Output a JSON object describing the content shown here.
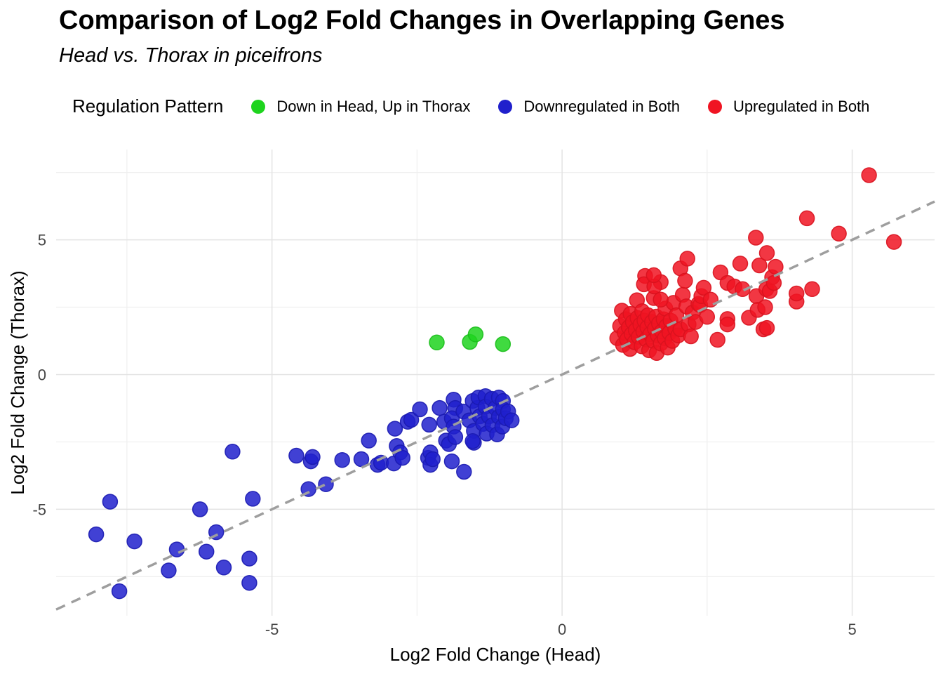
{
  "header": {
    "title": "Comparison of Log2 Fold Changes in Overlapping Genes",
    "subtitle": "Head vs. Thorax in piceifrons"
  },
  "legend": {
    "title": "Regulation Pattern",
    "items": [
      {
        "label": "Down in Head, Up in Thorax",
        "color": "#1ED41E",
        "stroke": "#19BE19"
      },
      {
        "label": "Downregulated in Both",
        "color": "#2020CC",
        "stroke": "#1A1AB0"
      },
      {
        "label": "Upregulated in Both",
        "color": "#F01422",
        "stroke": "#D8121E"
      }
    ]
  },
  "chart_data": {
    "type": "scatter",
    "title": "Comparison of Log2 Fold Changes in Overlapping Genes",
    "subtitle": "Head vs. Thorax in piceifrons",
    "xlabel": "Log2 Fold Change (Head)",
    "ylabel": "Log2 Fold Change (Thorax)",
    "xlim": [
      -8.72,
      6.42
    ],
    "ylim": [
      -8.95,
      8.35
    ],
    "x_ticks": [
      -5,
      0,
      5
    ],
    "y_ticks": [
      -5,
      0,
      5
    ],
    "x_minor_ticks": [
      -7.5,
      -2.5,
      2.5
    ],
    "y_minor_ticks": [
      -7.5,
      -2.5,
      2.5,
      7.5
    ],
    "grid": true,
    "legend_position": "top",
    "colors": {
      "grid_major": "#E3E3E3",
      "grid_minor": "#EFEFEF",
      "axis_text": "#474747",
      "axis_title": "#000000",
      "identity_line": "#9E9E9E"
    },
    "identity_line": {
      "style": "dashed",
      "from": [
        -8.72,
        -8.72
      ],
      "to": [
        6.42,
        6.42
      ]
    },
    "series": [
      {
        "name": "Down in Head, Up in Thorax",
        "color": "#1ED41E",
        "stroke": "#19BE19",
        "points": [
          [
            -2.16,
            1.19
          ],
          [
            -1.59,
            1.21
          ],
          [
            -1.49,
            1.49
          ],
          [
            -1.02,
            1.13
          ]
        ]
      },
      {
        "name": "Downregulated in Both",
        "color": "#2020CC",
        "stroke": "#1A1AB0",
        "points": [
          [
            -8.03,
            -5.93
          ],
          [
            -7.79,
            -4.72
          ],
          [
            -7.63,
            -8.04
          ],
          [
            -7.37,
            -6.19
          ],
          [
            -6.78,
            -7.27
          ],
          [
            -6.64,
            -6.49
          ],
          [
            -6.24,
            -5.0
          ],
          [
            -6.13,
            -6.57
          ],
          [
            -5.96,
            -5.85
          ],
          [
            -5.83,
            -7.16
          ],
          [
            -5.68,
            -2.86
          ],
          [
            -5.39,
            -6.83
          ],
          [
            -5.39,
            -7.73
          ],
          [
            -5.33,
            -4.61
          ],
          [
            -4.58,
            -3.01
          ],
          [
            -4.37,
            -4.25
          ],
          [
            -4.33,
            -3.22
          ],
          [
            -4.3,
            -3.06
          ],
          [
            -4.07,
            -4.07
          ],
          [
            -3.79,
            -3.17
          ],
          [
            -3.46,
            -3.14
          ],
          [
            -3.33,
            -2.45
          ],
          [
            -3.18,
            -3.35
          ],
          [
            -3.12,
            -3.27
          ],
          [
            -2.9,
            -3.3
          ],
          [
            -2.88,
            -2.01
          ],
          [
            -2.85,
            -2.65
          ],
          [
            -2.79,
            -2.89
          ],
          [
            -2.75,
            -3.09
          ],
          [
            -2.66,
            -1.75
          ],
          [
            -2.6,
            -1.68
          ],
          [
            -2.45,
            -1.29
          ],
          [
            -2.31,
            -3.09
          ],
          [
            -2.29,
            -1.86
          ],
          [
            -2.27,
            -2.89
          ],
          [
            -2.27,
            -3.35
          ],
          [
            -2.23,
            -3.14
          ],
          [
            -2.11,
            -1.24
          ],
          [
            -2.03,
            -1.75
          ],
          [
            -2.0,
            -2.45
          ],
          [
            -1.95,
            -2.58
          ],
          [
            -1.9,
            -3.22
          ],
          [
            -1.69,
            -3.61
          ],
          [
            -1.87,
            -0.93
          ],
          [
            -1.84,
            -1.24
          ],
          [
            -1.9,
            -1.62
          ],
          [
            -1.87,
            -1.93
          ],
          [
            -1.84,
            -2.32
          ],
          [
            -1.7,
            -1.37
          ],
          [
            -1.6,
            -1.7
          ],
          [
            -1.54,
            -0.98
          ],
          [
            -1.52,
            -2.09
          ],
          [
            -1.52,
            -2.53
          ],
          [
            -1.54,
            -2.47
          ],
          [
            -1.46,
            -1.24
          ],
          [
            -1.44,
            -0.85
          ],
          [
            -1.42,
            -1.55
          ],
          [
            -1.36,
            -1.83
          ],
          [
            -1.32,
            -0.8
          ],
          [
            -1.32,
            -1.19
          ],
          [
            -1.3,
            -2.19
          ],
          [
            -1.26,
            -1.55
          ],
          [
            -1.21,
            -0.9
          ],
          [
            -1.2,
            -1.88
          ],
          [
            -1.15,
            -1.24
          ],
          [
            -1.12,
            -2.22
          ],
          [
            -1.09,
            -0.85
          ],
          [
            -1.09,
            -1.57
          ],
          [
            -1.03,
            -1.93
          ],
          [
            -1.02,
            -0.98
          ],
          [
            -1.02,
            -1.29
          ],
          [
            -0.97,
            -1.62
          ],
          [
            -0.93,
            -1.37
          ],
          [
            -0.87,
            -1.7
          ]
        ]
      },
      {
        "name": "Upregulated in Both",
        "color": "#F01422",
        "stroke": "#D8121E",
        "points": [
          [
            0.95,
            1.35
          ],
          [
            1.0,
            1.8
          ],
          [
            1.03,
            2.37
          ],
          [
            1.05,
            1.1
          ],
          [
            1.08,
            1.55
          ],
          [
            1.1,
            2.05
          ],
          [
            1.12,
            1.3
          ],
          [
            1.15,
            1.75
          ],
          [
            1.17,
            0.95
          ],
          [
            1.18,
            2.25
          ],
          [
            1.2,
            1.5
          ],
          [
            1.22,
            1.95
          ],
          [
            1.25,
            1.2
          ],
          [
            1.27,
            1.65
          ],
          [
            1.29,
            2.76
          ],
          [
            1.3,
            2.1
          ],
          [
            1.32,
            1.4
          ],
          [
            1.35,
            1.85
          ],
          [
            1.37,
            1.05
          ],
          [
            1.38,
            2.35
          ],
          [
            1.4,
            1.6
          ],
          [
            1.42,
            2.0
          ],
          [
            1.43,
            3.66
          ],
          [
            1.45,
            1.3
          ],
          [
            1.47,
            1.75
          ],
          [
            1.48,
            2.2
          ],
          [
            1.5,
            0.9
          ],
          [
            1.52,
            1.5
          ],
          [
            1.55,
            1.95
          ],
          [
            1.57,
            1.25
          ],
          [
            1.58,
            2.84
          ],
          [
            1.6,
            1.7
          ],
          [
            1.62,
            2.15
          ],
          [
            1.63,
            0.8
          ],
          [
            1.65,
            1.45
          ],
          [
            1.67,
            1.9
          ],
          [
            1.7,
            1.15
          ],
          [
            1.7,
            3.43
          ],
          [
            1.41,
            3.35
          ],
          [
            1.59,
            3.27
          ],
          [
            1.58,
            3.69
          ],
          [
            1.72,
            1.6
          ],
          [
            1.75,
            2.05
          ],
          [
            1.77,
            1.35
          ],
          [
            1.78,
            2.45
          ],
          [
            1.8,
            1.8
          ],
          [
            1.82,
            1.0
          ],
          [
            1.85,
            1.55
          ],
          [
            1.87,
            2.0
          ],
          [
            1.9,
            1.25
          ],
          [
            1.92,
            2.66
          ],
          [
            1.95,
            1.7
          ],
          [
            1.97,
            2.2
          ],
          [
            2.0,
            1.45
          ],
          [
            1.7,
            2.78
          ],
          [
            2.04,
            1.68
          ],
          [
            2.04,
            3.94
          ],
          [
            2.08,
            2.96
          ],
          [
            2.12,
            3.48
          ],
          [
            2.14,
            2.53
          ],
          [
            2.16,
            4.3
          ],
          [
            2.18,
            1.86
          ],
          [
            2.22,
            1.42
          ],
          [
            2.25,
            2.3
          ],
          [
            2.3,
            1.95
          ],
          [
            2.35,
            2.62
          ],
          [
            2.38,
            2.58
          ],
          [
            2.4,
            2.91
          ],
          [
            2.44,
            3.22
          ],
          [
            2.5,
            2.14
          ],
          [
            2.56,
            2.78
          ],
          [
            2.68,
            1.29
          ],
          [
            2.73,
            3.79
          ],
          [
            2.85,
            2.06
          ],
          [
            2.85,
            1.86
          ],
          [
            2.85,
            3.4
          ],
          [
            2.97,
            3.27
          ],
          [
            3.07,
            4.12
          ],
          [
            3.11,
            3.17
          ],
          [
            3.22,
            2.11
          ],
          [
            3.34,
            5.08
          ],
          [
            3.35,
            2.91
          ],
          [
            3.37,
            2.4
          ],
          [
            3.4,
            4.05
          ],
          [
            3.47,
            1.68
          ],
          [
            3.5,
            2.5
          ],
          [
            3.52,
            3.17
          ],
          [
            3.53,
            4.51
          ],
          [
            3.53,
            1.73
          ],
          [
            3.58,
            3.1
          ],
          [
            3.62,
            3.61
          ],
          [
            3.65,
            3.4
          ],
          [
            3.68,
            4.0
          ],
          [
            4.04,
            2.71
          ],
          [
            4.04,
            3.01
          ],
          [
            4.22,
            5.8
          ],
          [
            4.31,
            3.17
          ],
          [
            4.77,
            5.23
          ],
          [
            5.29,
            7.4
          ],
          [
            5.72,
            4.92
          ]
        ]
      }
    ]
  }
}
